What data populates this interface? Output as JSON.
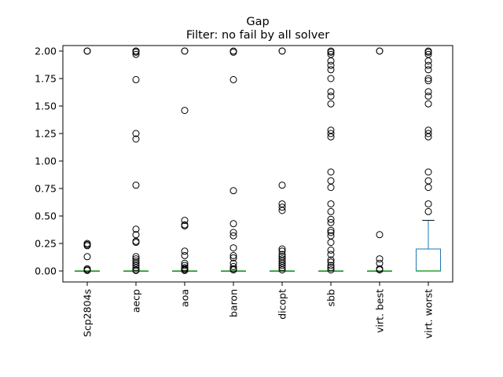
{
  "chart_data": {
    "type": "boxplot",
    "title": "Gap",
    "subtitle": "Filter: no fail by all solver",
    "xlabel": "",
    "ylabel": "",
    "ylim": [
      -0.1,
      2.05
    ],
    "yticks": [
      "0.00",
      "0.25",
      "0.50",
      "0.75",
      "1.00",
      "1.25",
      "1.50",
      "1.75",
      "2.00"
    ],
    "grid": false,
    "colors": {
      "box": "#1f77b4",
      "median": "#2ca02c",
      "outlier": "#000000"
    },
    "categories": [
      {
        "name": "Scp2804s",
        "q1": 0,
        "median": 0,
        "q3": 0,
        "whisker_low": 0,
        "whisker_high": 0,
        "outliers": [
          2.0,
          2.0,
          2.0,
          0.25,
          0.24,
          0.23,
          0.13,
          0.02,
          0.01,
          0.005
        ]
      },
      {
        "name": "aecp",
        "q1": 0,
        "median": 0,
        "q3": 0,
        "whisker_low": 0,
        "whisker_high": 0,
        "outliers": [
          2.0,
          2.0,
          1.99,
          1.97,
          1.74,
          1.25,
          1.2,
          0.78,
          0.38,
          0.33,
          0.27,
          0.26,
          0.13,
          0.11,
          0.09,
          0.07,
          0.05,
          0.03,
          0.01,
          0.005
        ]
      },
      {
        "name": "aoa",
        "q1": 0,
        "median": 0,
        "q3": 0,
        "whisker_low": 0,
        "whisker_high": 0,
        "outliers": [
          2.0,
          2.0,
          1.46,
          0.46,
          0.42,
          0.41,
          0.18,
          0.14,
          0.07,
          0.05,
          0.03,
          0.02,
          0.01,
          0.005
        ]
      },
      {
        "name": "baron",
        "q1": 0,
        "median": 0,
        "q3": 0,
        "whisker_low": 0,
        "whisker_high": 0,
        "outliers": [
          2.0,
          1.99,
          1.74,
          0.73,
          0.43,
          0.35,
          0.32,
          0.21,
          0.14,
          0.12,
          0.07,
          0.04,
          0.02,
          0.01
        ]
      },
      {
        "name": "dicopt",
        "q1": 0,
        "median": 0,
        "q3": 0,
        "whisker_low": 0,
        "whisker_high": 0,
        "outliers": [
          2.0,
          2.0,
          0.78,
          0.61,
          0.58,
          0.55,
          0.2,
          0.18,
          0.15,
          0.13,
          0.11,
          0.09,
          0.07,
          0.05,
          0.03,
          0.01
        ]
      },
      {
        "name": "sbb",
        "q1": 0,
        "median": 0,
        "q3": 0,
        "whisker_low": 0,
        "whisker_high": 0,
        "outliers": [
          2.0,
          1.99,
          1.97,
          1.91,
          1.87,
          1.83,
          1.75,
          1.63,
          1.59,
          1.52,
          1.28,
          1.25,
          1.22,
          0.9,
          0.82,
          0.76,
          0.61,
          0.54,
          0.47,
          0.44,
          0.37,
          0.35,
          0.32,
          0.26,
          0.19,
          0.15,
          0.1,
          0.08,
          0.05,
          0.03,
          0.01
        ]
      },
      {
        "name": "virt. best",
        "q1": 0,
        "median": 0,
        "q3": 0,
        "whisker_low": 0,
        "whisker_high": 0,
        "outliers": [
          2.0,
          2.0,
          0.33,
          0.11,
          0.07,
          0.02,
          0.01
        ]
      },
      {
        "name": "virt. worst",
        "q1": 0,
        "median": 0,
        "q3": 0.2,
        "whisker_low": 0,
        "whisker_high": 0.46,
        "outliers": [
          2.0,
          1.99,
          1.97,
          1.91,
          1.87,
          1.83,
          1.75,
          1.73,
          1.63,
          1.59,
          1.52,
          1.28,
          1.25,
          1.22,
          0.9,
          0.82,
          0.76,
          0.61,
          0.54
        ]
      }
    ]
  }
}
